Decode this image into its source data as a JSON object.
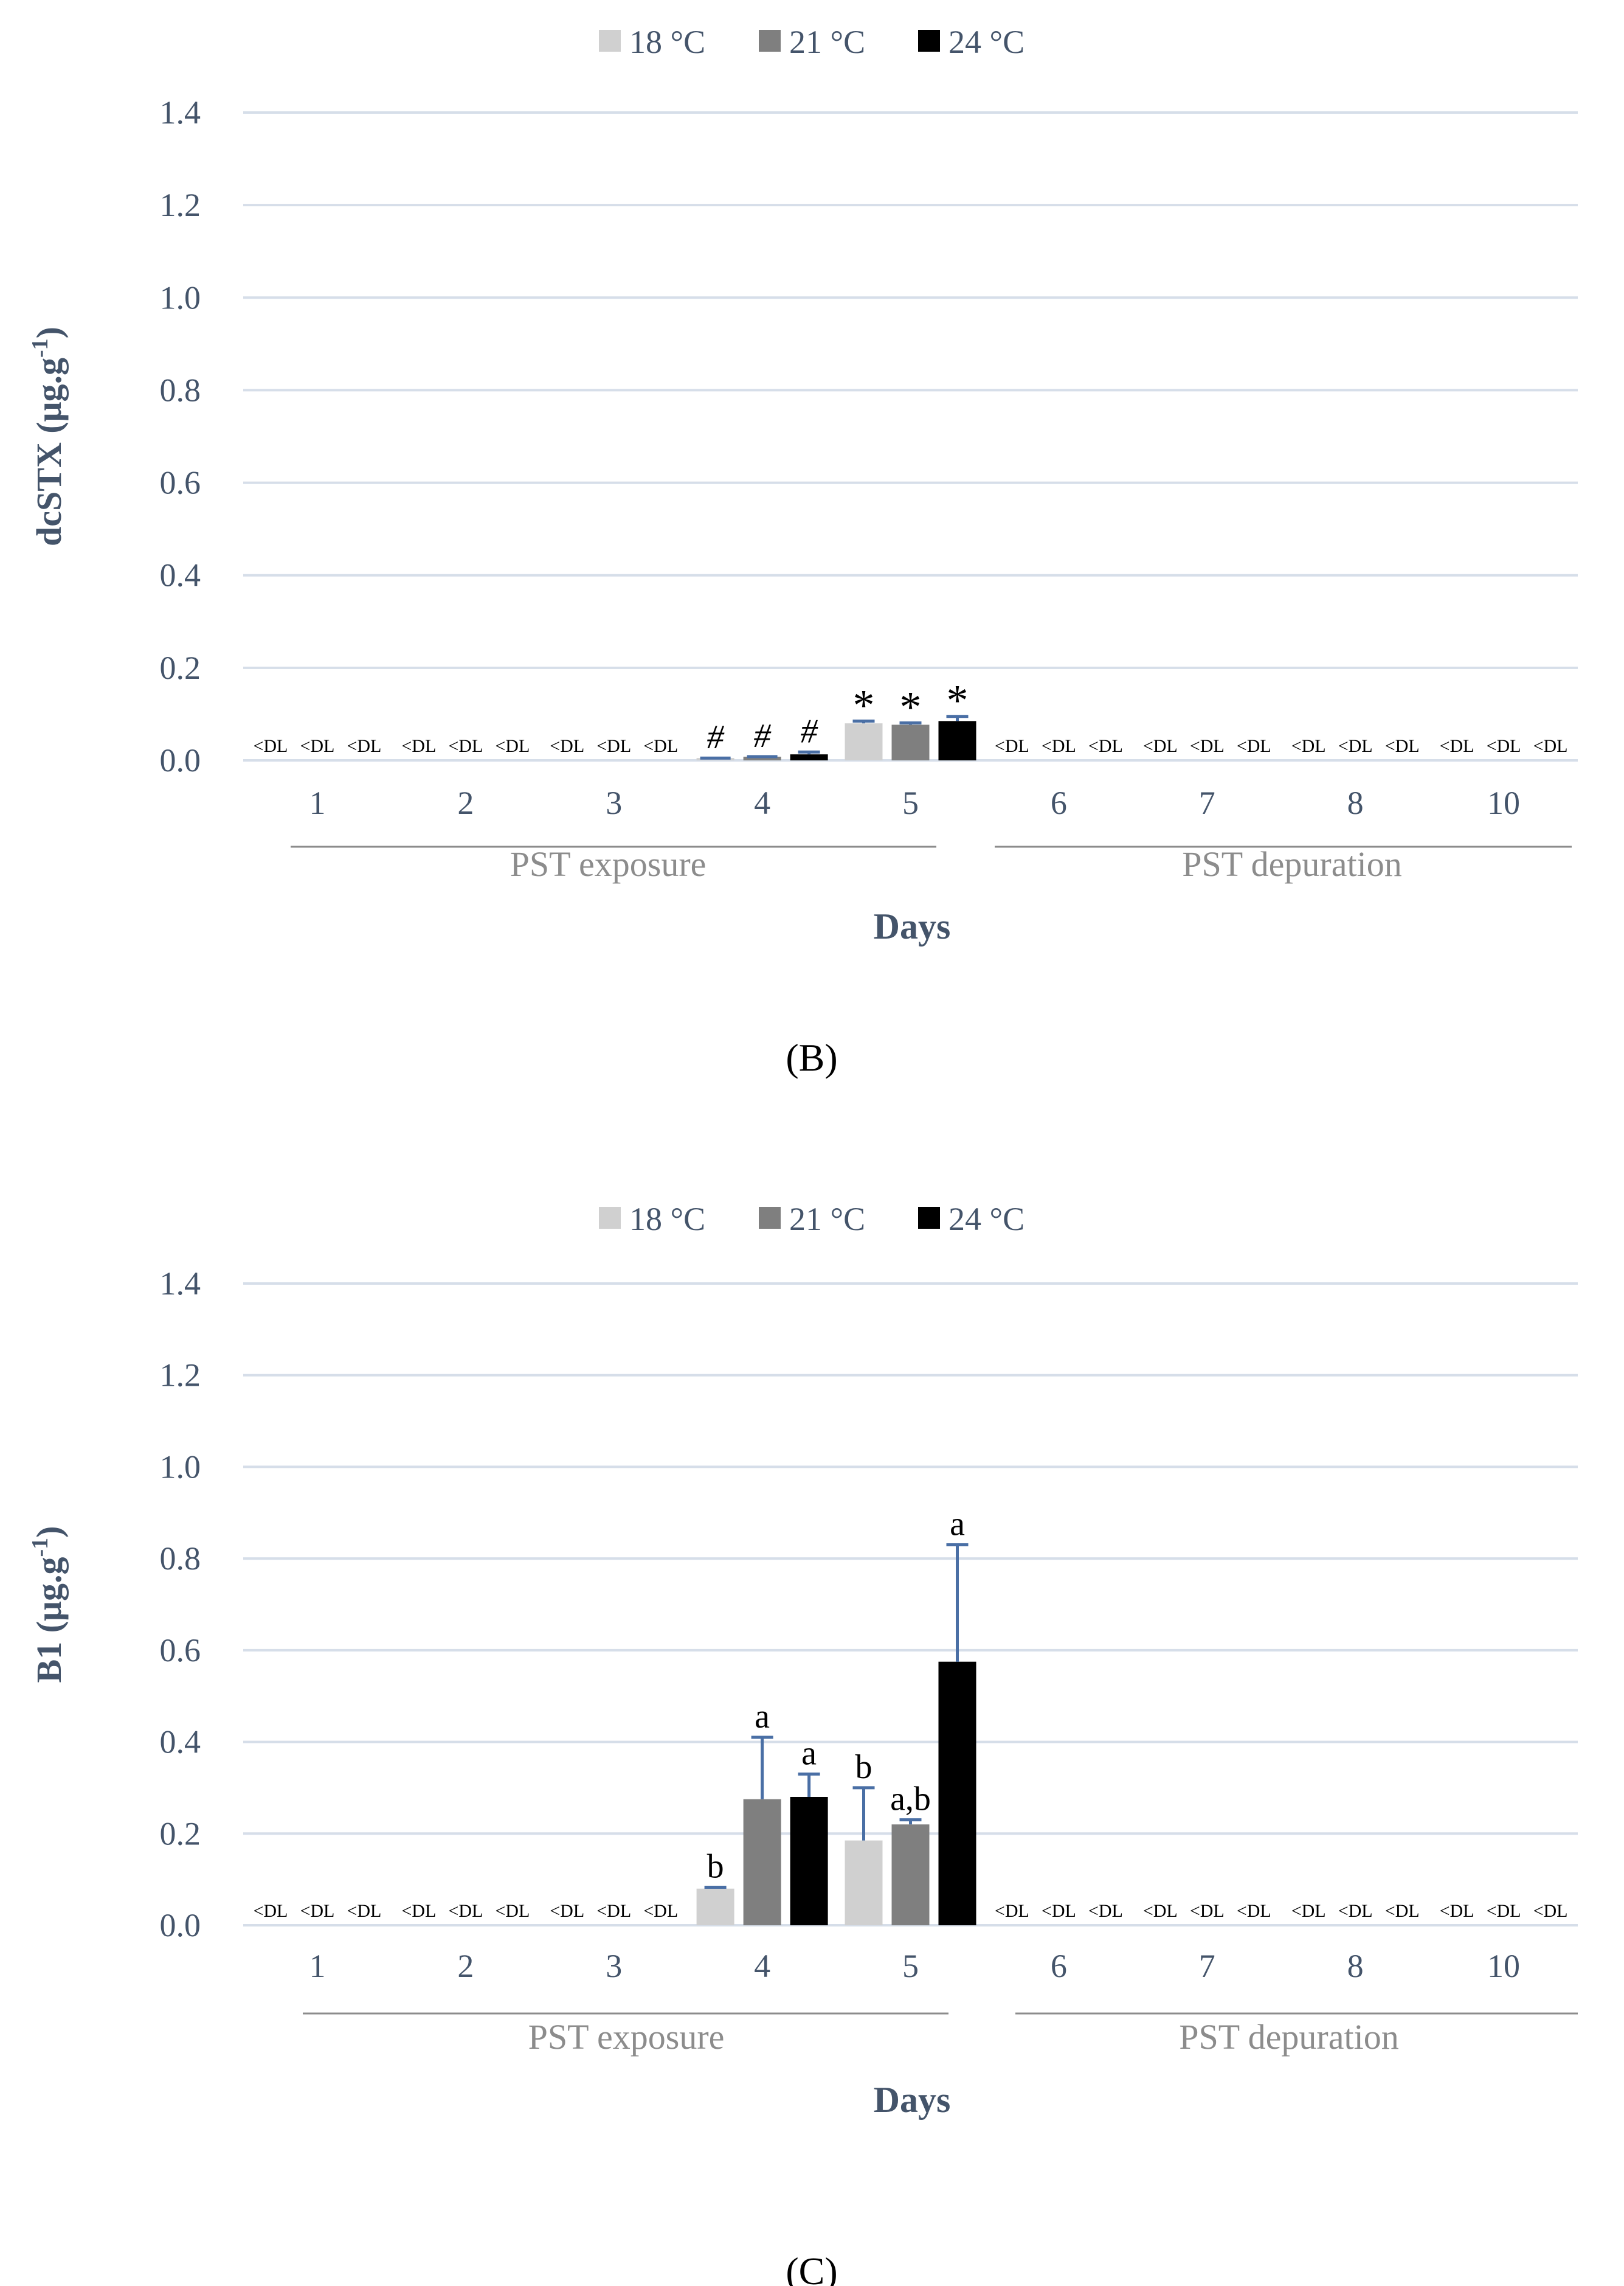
{
  "colors": {
    "c18": "#d0d0d0",
    "c21": "#7f7f7f",
    "c24": "#000000",
    "grid": "#d6dee9",
    "axisText": "#44546a",
    "groupLine": "#8c8c8c",
    "groupText": "#8c8c8c",
    "errorBar": "#4a6fa5"
  },
  "legend": [
    "18 °C",
    "21 °C",
    "24 °C"
  ],
  "chart_data": [
    {
      "type": "bar",
      "panel_label": "(B)",
      "ylabel_main": "dcSTX (μg.g",
      "ylabel_sup": "-1",
      "ylabel_end": ")",
      "xlabel": "Days",
      "ylim": [
        0,
        1.4
      ],
      "yticks": [
        "0.0",
        "0.2",
        "0.4",
        "0.6",
        "0.8",
        "1.0",
        "1.2",
        "1.4"
      ],
      "categories": [
        "1",
        "2",
        "3",
        "4",
        "5",
        "6",
        "7",
        "8",
        "10"
      ],
      "groups": [
        "PST exposure",
        "PST depuration"
      ],
      "below_dl_label": "<DL",
      "series": [
        {
          "name": "18 °C",
          "values": [
            null,
            null,
            null,
            0.005,
            0.08,
            null,
            null,
            null,
            null
          ],
          "errors": [
            0,
            0,
            0,
            0,
            0.005,
            0,
            0,
            0,
            0
          ],
          "annotations": [
            "<DL",
            "<DL",
            "<DL",
            "#",
            "*",
            "<DL",
            "<DL",
            "<DL",
            "<DL"
          ]
        },
        {
          "name": "21 °C",
          "values": [
            null,
            null,
            null,
            0.008,
            0.077,
            null,
            null,
            null,
            null
          ],
          "errors": [
            0,
            0,
            0,
            0,
            0.004,
            0,
            0,
            0,
            0
          ],
          "annotations": [
            "<DL",
            "<DL",
            "<DL",
            "#",
            "*",
            "<DL",
            "<DL",
            "<DL",
            "<DL"
          ]
        },
        {
          "name": "24 °C",
          "values": [
            null,
            null,
            null,
            0.013,
            0.085,
            null,
            null,
            null,
            null
          ],
          "errors": [
            0,
            0,
            0,
            0.005,
            0.01,
            0,
            0,
            0,
            0
          ],
          "annotations": [
            "<DL",
            "<DL",
            "<DL",
            "#",
            "*",
            "<DL",
            "<DL",
            "<DL",
            "<DL"
          ]
        }
      ]
    },
    {
      "type": "bar",
      "panel_label": "(C)",
      "ylabel_main": "B1 (μg.g",
      "ylabel_sup": "-1",
      "ylabel_end": ")",
      "xlabel": "Days",
      "ylim": [
        0,
        1.4
      ],
      "yticks": [
        "0.0",
        "0.2",
        "0.4",
        "0.6",
        "0.8",
        "1.0",
        "1.2",
        "1.4"
      ],
      "categories": [
        "1",
        "2",
        "3",
        "4",
        "5",
        "6",
        "7",
        "8",
        "10"
      ],
      "groups": [
        "PST exposure",
        "PST depuration"
      ],
      "below_dl_label": "<DL",
      "series": [
        {
          "name": "18 °C",
          "values": [
            null,
            null,
            null,
            0.08,
            0.185,
            null,
            null,
            null,
            null
          ],
          "errors": [
            0,
            0,
            0,
            0.003,
            0.115,
            0,
            0,
            0,
            0
          ],
          "annotations": [
            "<DL",
            "<DL",
            "<DL",
            "b",
            "b",
            "<DL",
            "<DL",
            "<DL",
            "<DL"
          ]
        },
        {
          "name": "21 °C",
          "values": [
            null,
            null,
            null,
            0.275,
            0.22,
            null,
            null,
            null,
            null
          ],
          "errors": [
            0,
            0,
            0,
            0.135,
            0.01,
            0,
            0,
            0,
            0
          ],
          "annotations": [
            "<DL",
            "<DL",
            "<DL",
            "a",
            "a,b",
            "<DL",
            "<DL",
            "<DL",
            "<DL"
          ]
        },
        {
          "name": "24 °C",
          "values": [
            null,
            null,
            null,
            0.28,
            0.575,
            null,
            null,
            null,
            null
          ],
          "errors": [
            0,
            0,
            0,
            0.05,
            0.255,
            0,
            0,
            0,
            0
          ],
          "annotations": [
            "<DL",
            "<DL",
            "<DL",
            "a",
            "a",
            "<DL",
            "<DL",
            "<DL",
            "<DL"
          ]
        }
      ]
    }
  ]
}
